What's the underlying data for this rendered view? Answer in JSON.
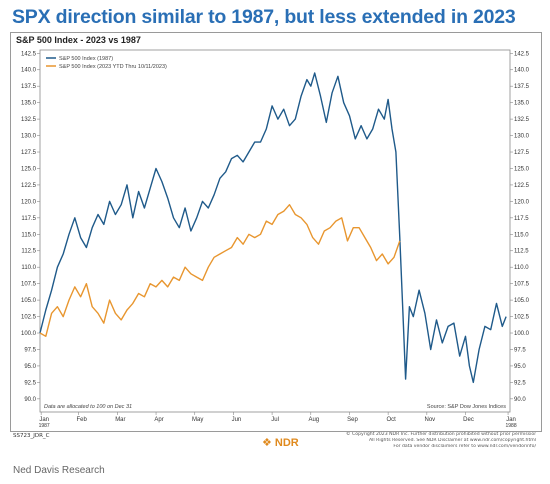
{
  "headline": "SPX direction similar to 1987, but less extended in 2023",
  "credit": "Ned Davis Research",
  "footer": {
    "code": "SS723_JDR_C",
    "logo_text": "NDR",
    "copyright_lines": [
      "© Copyright 2023 NDR Inc. Further distribution prohibited without prior permission.",
      "All Rights Reserved. See NDR Disclaimer at www.ndr.com/copyright.html",
      "For data vendor disclaimers refer to www.ndr.com/vendorinfo/"
    ]
  },
  "chart_data": {
    "type": "line",
    "title": "S&P 500 Index - 2023 vs 1987",
    "note": "Data are allocated to 100 on Dec 31",
    "source": "Source: S&P Dow Jones Indices",
    "ylim": [
      88,
      143
    ],
    "yticks": [
      142.5,
      140.0,
      137.5,
      135.0,
      132.5,
      130.0,
      127.5,
      125.0,
      122.5,
      120.0,
      117.5,
      115.0,
      112.5,
      110.0,
      107.5,
      105.0,
      102.5,
      100.0,
      97.5,
      95.0,
      92.5,
      90.0
    ],
    "ytick_labels": [
      "142.5",
      "140.0",
      "137.5",
      "135.0",
      "132.5",
      "130.0",
      "127.5",
      "125.0",
      "122.5",
      "120.0",
      "117.5",
      "115.0",
      "112.5",
      "110.0",
      "107.5",
      "105.0",
      "102.5",
      "100.0",
      "97.5",
      "95.0",
      "92.5",
      "90.0"
    ],
    "xlim": [
      0,
      12.15
    ],
    "xticks": [
      {
        "x": 0.03,
        "label": "Jan",
        "sub": "1987"
      },
      {
        "x": 1.0,
        "label": "Feb"
      },
      {
        "x": 2.0,
        "label": "Mar"
      },
      {
        "x": 3.0,
        "label": "Apr"
      },
      {
        "x": 4.0,
        "label": "May"
      },
      {
        "x": 5.0,
        "label": "Jun"
      },
      {
        "x": 6.0,
        "label": "Jul"
      },
      {
        "x": 7.0,
        "label": "Aug"
      },
      {
        "x": 8.0,
        "label": "Sep"
      },
      {
        "x": 9.0,
        "label": "Oct"
      },
      {
        "x": 10.0,
        "label": "Nov"
      },
      {
        "x": 11.0,
        "label": "Dec"
      },
      {
        "x": 12.1,
        "label": "Jan",
        "sub": "1988"
      }
    ],
    "legend_position": "top-left",
    "series": [
      {
        "name": "S&P 500 Index (1987)",
        "color": "#1f5a8a",
        "x": [
          0,
          0.15,
          0.3,
          0.45,
          0.6,
          0.75,
          0.9,
          1.05,
          1.2,
          1.35,
          1.5,
          1.65,
          1.8,
          1.95,
          2.1,
          2.25,
          2.4,
          2.55,
          2.7,
          2.85,
          3.0,
          3.15,
          3.3,
          3.45,
          3.6,
          3.75,
          3.9,
          4.05,
          4.2,
          4.35,
          4.5,
          4.65,
          4.8,
          4.95,
          5.1,
          5.25,
          5.4,
          5.55,
          5.7,
          5.85,
          6.0,
          6.15,
          6.3,
          6.45,
          6.6,
          6.75,
          6.9,
          7.0,
          7.1,
          7.25,
          7.4,
          7.55,
          7.7,
          7.85,
          8.0,
          8.15,
          8.3,
          8.45,
          8.6,
          8.75,
          8.9,
          9.0,
          9.1,
          9.2,
          9.3,
          9.38,
          9.45,
          9.55,
          9.65,
          9.8,
          9.95,
          10.1,
          10.25,
          10.4,
          10.55,
          10.7,
          10.85,
          11.0,
          11.1,
          11.2,
          11.35,
          11.5,
          11.65,
          11.8,
          11.95,
          12.05
        ],
        "values": [
          100,
          103.5,
          106.5,
          110,
          112,
          115,
          117.5,
          114.5,
          113,
          116,
          118,
          116.5,
          120,
          118,
          119.5,
          122.5,
          117.5,
          121.5,
          119,
          122,
          125,
          123,
          120.5,
          117.5,
          116,
          119,
          115.5,
          117.5,
          120,
          119,
          121,
          123.5,
          124.5,
          126.5,
          127,
          126,
          127.5,
          129,
          129,
          131,
          134.5,
          132.5,
          134,
          131.5,
          132.5,
          136,
          138.5,
          137.5,
          139.5,
          136,
          132,
          136.5,
          139,
          135,
          133,
          129.5,
          131.5,
          129.5,
          131,
          134,
          132.5,
          135.5,
          131,
          127.5,
          114.5,
          103.5,
          93,
          104,
          102.5,
          106.5,
          103,
          97.5,
          102,
          98.5,
          101,
          101.5,
          96.5,
          99.5,
          95,
          92.5,
          97.5,
          101,
          100.5,
          104.5,
          101,
          102.5
        ]
      },
      {
        "name": "S&P 500 Index (2023 YTD Thru 10/11/2023)",
        "color": "#e8962f",
        "x": [
          0,
          0.15,
          0.3,
          0.45,
          0.6,
          0.75,
          0.9,
          1.05,
          1.2,
          1.35,
          1.5,
          1.65,
          1.8,
          1.95,
          2.1,
          2.25,
          2.4,
          2.55,
          2.7,
          2.85,
          3.0,
          3.15,
          3.3,
          3.45,
          3.6,
          3.75,
          3.9,
          4.05,
          4.2,
          4.35,
          4.5,
          4.65,
          4.8,
          4.95,
          5.1,
          5.25,
          5.4,
          5.55,
          5.7,
          5.85,
          6.0,
          6.15,
          6.3,
          6.45,
          6.6,
          6.75,
          6.9,
          7.05,
          7.2,
          7.35,
          7.5,
          7.65,
          7.8,
          7.95,
          8.1,
          8.25,
          8.4,
          8.55,
          8.7,
          8.85,
          9.0,
          9.15,
          9.3
        ],
        "values": [
          100,
          99.5,
          103,
          104,
          102.5,
          105,
          107,
          105.5,
          107.5,
          104,
          103,
          101.5,
          105,
          103,
          102,
          103.5,
          104.5,
          106,
          105.5,
          107.5,
          107,
          108,
          107,
          108.5,
          108,
          110,
          109,
          108.5,
          108,
          110,
          111.5,
          112,
          112.5,
          113,
          114.5,
          113.5,
          115,
          114.5,
          115,
          117,
          116.5,
          118,
          118.5,
          119.5,
          118,
          117.5,
          116.5,
          114.5,
          113.5,
          115.5,
          116,
          117,
          117.5,
          114,
          116,
          116,
          114.5,
          113,
          111,
          112,
          110.5,
          111.5,
          114
        ]
      }
    ]
  }
}
